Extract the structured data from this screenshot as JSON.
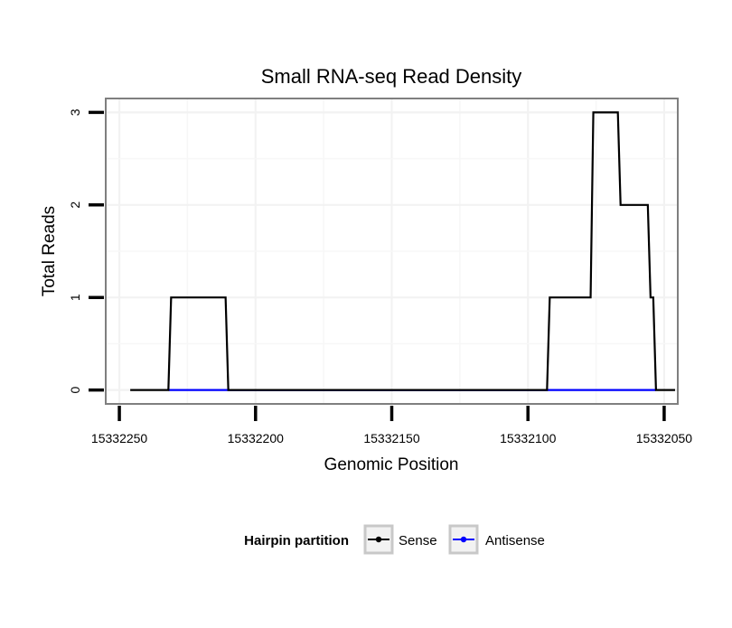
{
  "chart_data": {
    "type": "line",
    "title": "Small RNA-seq Read Density",
    "xlabel": "Genomic Position",
    "ylabel": "Total Reads",
    "xlim": [
      15332255,
      15332045
    ],
    "x_reversed": true,
    "ylim": [
      -0.15,
      3.15
    ],
    "x_ticks": [
      15332250,
      15332200,
      15332150,
      15332100,
      15332050
    ],
    "x_tick_labels": [
      "15332250",
      "15332200",
      "15332150",
      "15332100",
      "15332050"
    ],
    "y_ticks": [
      0,
      1,
      2,
      3
    ],
    "y_tick_labels": [
      "0",
      "1",
      "2",
      "3"
    ],
    "grid": true,
    "legend": {
      "title": "Hairpin partition",
      "position": "bottom",
      "entries": [
        "Sense",
        "Antisense"
      ]
    },
    "series": [
      {
        "name": "Sense",
        "color": "#000000",
        "x": [
          15332246,
          15332232,
          15332231,
          15332211,
          15332210,
          15332093,
          15332092,
          15332077,
          15332076,
          15332067,
          15332066,
          15332056,
          15332055,
          15332054,
          15332053,
          15332051,
          15332046
        ],
        "y": [
          0,
          0,
          1,
          1,
          0,
          0,
          1,
          1,
          3,
          3,
          2,
          2,
          1,
          1,
          0,
          0,
          0
        ]
      },
      {
        "name": "Antisense",
        "color": "#0000ff",
        "x": [
          15332232,
          15332210,
          15332093,
          15332053
        ],
        "y": [
          0,
          0,
          0,
          0
        ]
      }
    ]
  }
}
